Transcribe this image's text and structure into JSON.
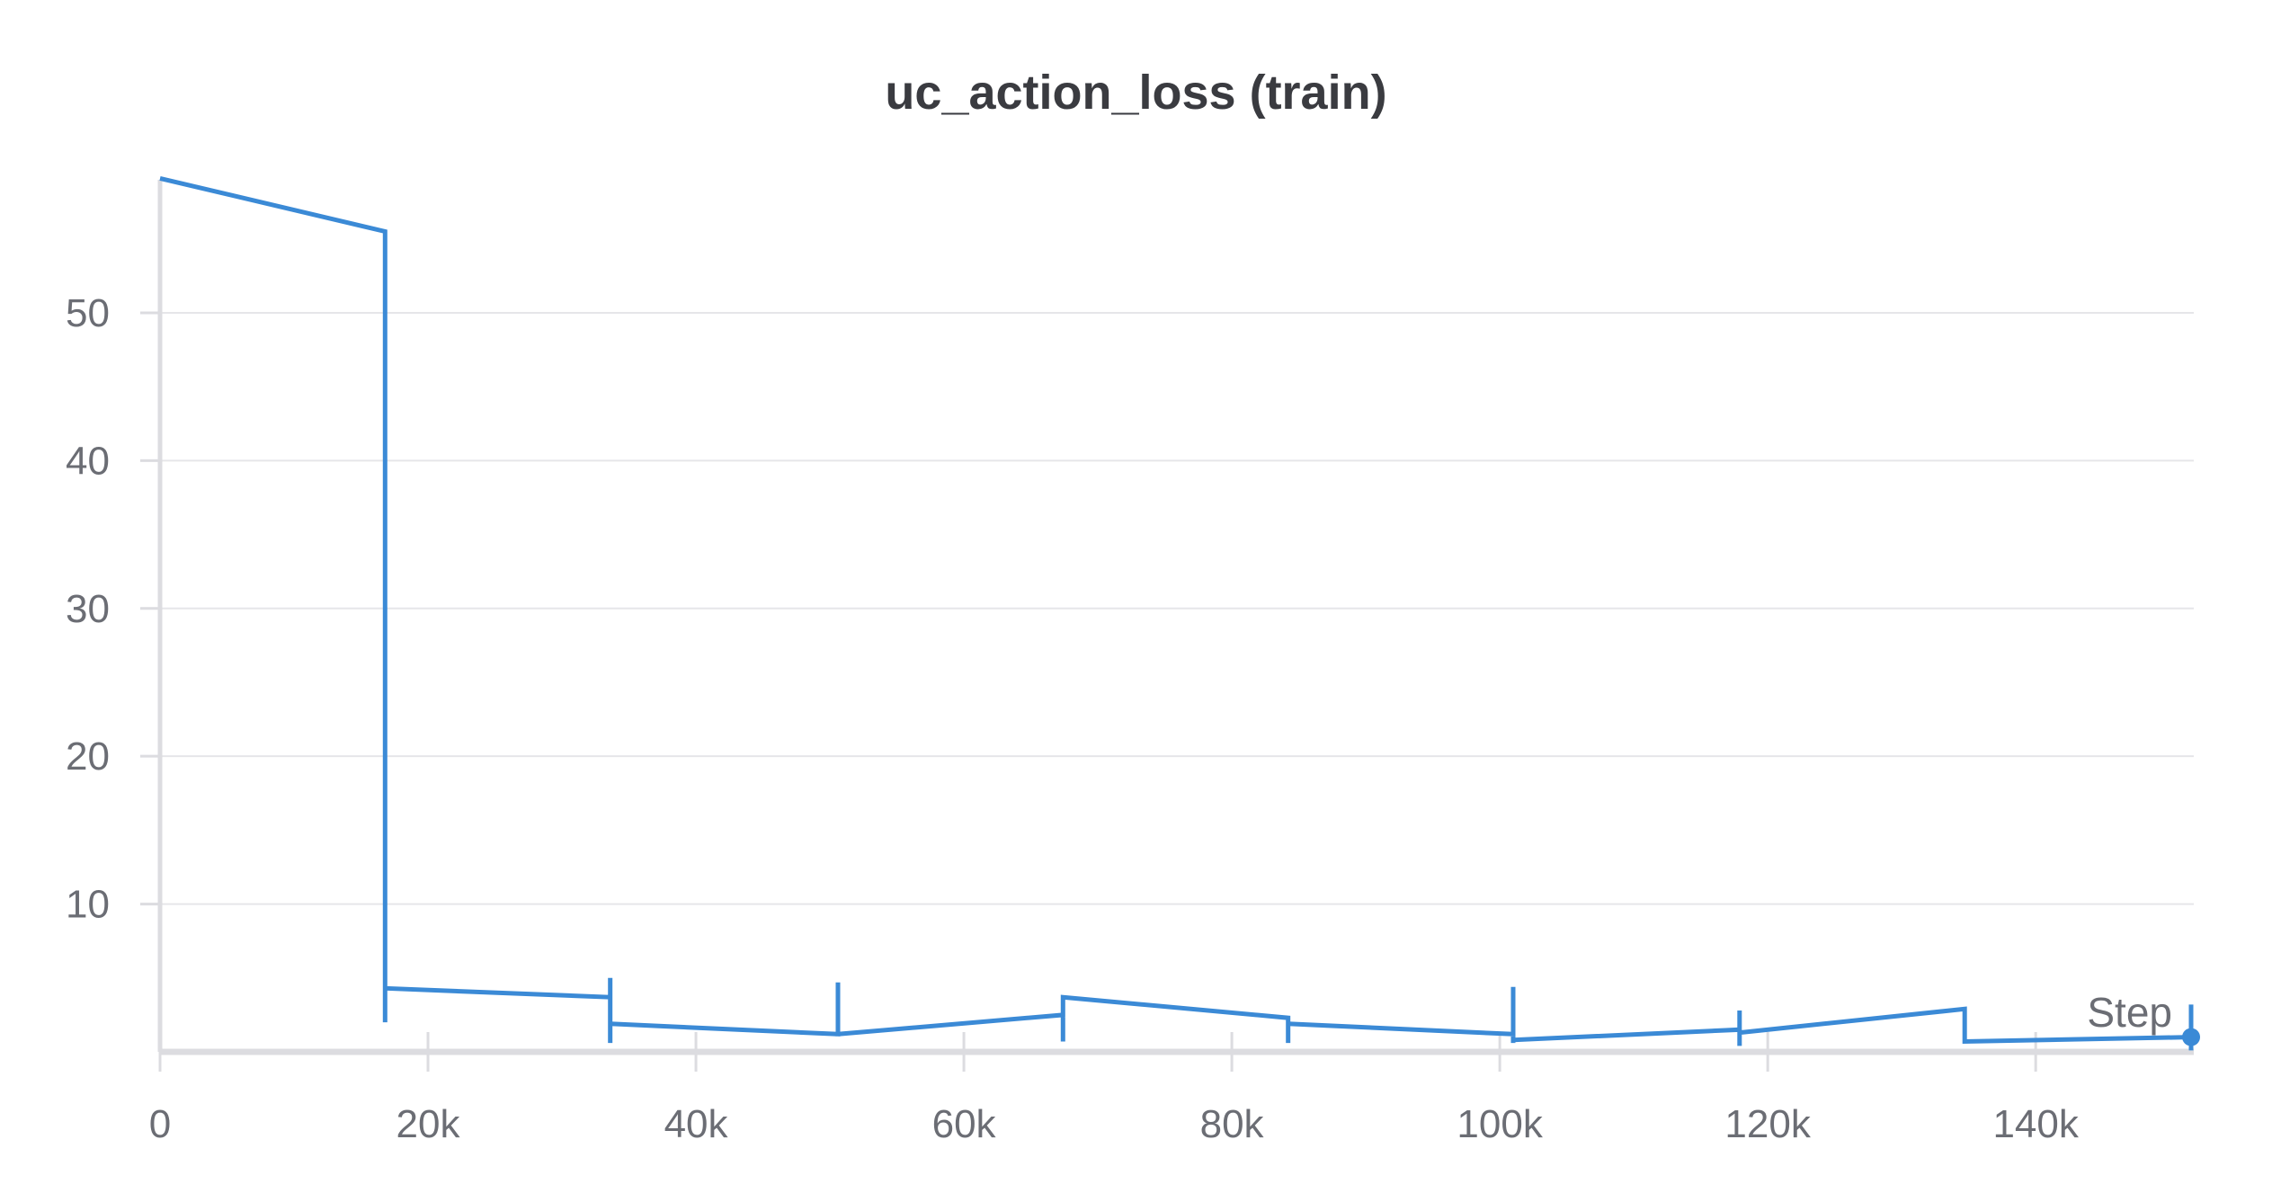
{
  "chart_data": {
    "type": "line",
    "title": "uc_action_loss (train)",
    "xlabel": "Step",
    "ylabel": "",
    "xlim": [
      0,
      151800
    ],
    "ylim": [
      0,
      59
    ],
    "x_ticks": [
      0,
      20000,
      40000,
      60000,
      80000,
      100000,
      120000,
      140000
    ],
    "x_tick_labels": [
      "0",
      "20k",
      "40k",
      "60k",
      "80k",
      "100k",
      "120k",
      "140k"
    ],
    "y_ticks": [
      10,
      20,
      30,
      40,
      50
    ],
    "y_tick_labels": [
      "10",
      "20",
      "30",
      "40",
      "50"
    ],
    "grid": true,
    "line_color": "#3b8ad6",
    "series": [
      {
        "name": "",
        "points": [
          {
            "x": 0,
            "y": 59.1
          },
          {
            "x": 16800,
            "y": 55.5
          },
          {
            "x": 16800,
            "y": 2.0
          },
          {
            "x": 16800,
            "y": 4.3
          },
          {
            "x": 33600,
            "y": 3.7
          },
          {
            "x": 33600,
            "y": 5.0
          },
          {
            "x": 33600,
            "y": 0.6
          },
          {
            "x": 33600,
            "y": 1.9
          },
          {
            "x": 50600,
            "y": 1.2
          },
          {
            "x": 50600,
            "y": 4.7
          },
          {
            "x": 50600,
            "y": 1.2
          },
          {
            "x": 67400,
            "y": 2.5
          },
          {
            "x": 67400,
            "y": 3.7
          },
          {
            "x": 67400,
            "y": 0.7
          },
          {
            "x": 67400,
            "y": 3.7
          },
          {
            "x": 84200,
            "y": 2.3
          },
          {
            "x": 84200,
            "y": 0.6
          },
          {
            "x": 84200,
            "y": 1.9
          },
          {
            "x": 101000,
            "y": 1.2
          },
          {
            "x": 101000,
            "y": 4.4
          },
          {
            "x": 101000,
            "y": 0.6
          },
          {
            "x": 101000,
            "y": 0.8
          },
          {
            "x": 117900,
            "y": 1.5
          },
          {
            "x": 117900,
            "y": 2.8
          },
          {
            "x": 117900,
            "y": 0.4
          },
          {
            "x": 117900,
            "y": 1.3
          },
          {
            "x": 134700,
            "y": 2.9
          },
          {
            "x": 134700,
            "y": 0.7
          },
          {
            "x": 151600,
            "y": 1.0
          },
          {
            "x": 151600,
            "y": 3.2
          },
          {
            "x": 151600,
            "y": 0.1
          },
          {
            "x": 151600,
            "y": 1.0
          }
        ]
      }
    ]
  }
}
